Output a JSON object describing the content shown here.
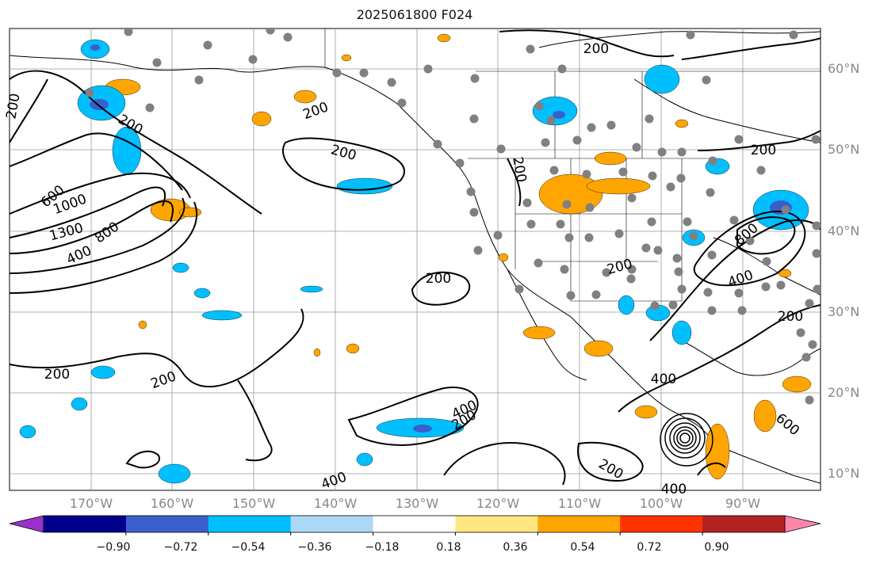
{
  "title": "2025061800 F024",
  "lon_labels": [
    "170°W",
    "160°W",
    "150°W",
    "140°W",
    "130°W",
    "120°W",
    "110°W",
    "100°W",
    "90°W"
  ],
  "lat_labels": [
    "60°N",
    "50°N",
    "40°N",
    "30°N",
    "20°N",
    "10°N"
  ],
  "contour_labels": [
    "200",
    "200",
    "200",
    "200",
    "200",
    "200",
    "200",
    "200",
    "200",
    "200",
    "200",
    "200",
    "200",
    "200",
    "400",
    "400",
    "400",
    "400",
    "400",
    "400",
    "600",
    "600",
    "800",
    "800",
    "1000",
    "1300"
  ],
  "colorbar": {
    "ticks": [
      "−0.90",
      "−0.72",
      "−0.54",
      "−0.36",
      "−0.18",
      "0.18",
      "0.36",
      "0.54",
      "0.72",
      "0.90"
    ],
    "colors": [
      "#9932cc",
      "#00008b",
      "#3a5fcd",
      "#00bfff",
      "#add8f5",
      "#ffffff",
      "#ffe680",
      "#ffa500",
      "#ff3300",
      "#b22222",
      "#ff85a8"
    ]
  },
  "colors": {
    "contour": "#000000",
    "gridline": "#999999",
    "station_marker": "#808080",
    "positive_fill": "#ffa500",
    "negative_fill": "#00bfff",
    "negative_core": "#3a5fcd"
  }
}
